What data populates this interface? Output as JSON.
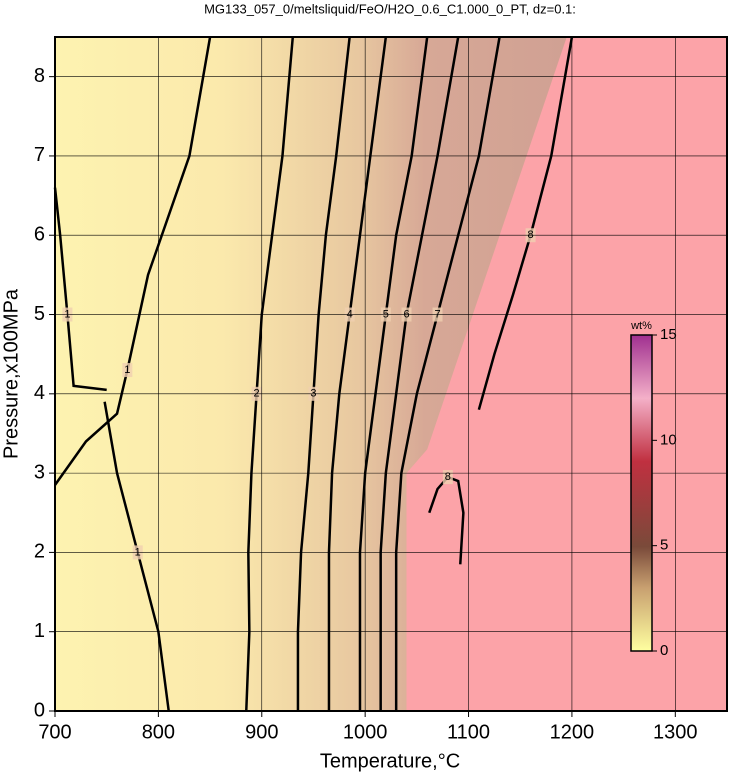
{
  "chart_data": {
    "type": "contour",
    "title": "MG133_057_0/meltsliquid/FeO/H2O_0.6_C1.000_0_PT, dz=0.1:",
    "xlabel": "Temperature,°C",
    "ylabel": "Pressure,x100MPa",
    "xlim": [
      700,
      1350
    ],
    "ylim": [
      0,
      8.5
    ],
    "xticks": [
      700,
      800,
      900,
      1000,
      1100,
      1200,
      1300
    ],
    "yticks": [
      0,
      1,
      2,
      3,
      4,
      5,
      6,
      7,
      8
    ],
    "grid": true,
    "contours": [
      {
        "level": 1,
        "x": [
          700,
          730,
          760,
          770,
          790,
          830,
          850
        ],
        "y": [
          2.85,
          3.4,
          3.75,
          4.3,
          5.5,
          7,
          8.5
        ]
      },
      {
        "level": 1,
        "x": [
          810,
          800,
          780,
          760,
          748
        ],
        "y": [
          0,
          1,
          2,
          3,
          3.9
        ]
      },
      {
        "level": 1,
        "x": [
          700,
          705,
          712,
          718,
          750
        ],
        "y": [
          6.6,
          6,
          5,
          4.1,
          4.05
        ]
      },
      {
        "level": 2,
        "x": [
          885,
          888,
          887,
          890,
          895,
          900,
          910,
          920,
          930
        ],
        "y": [
          0,
          1,
          2,
          3,
          4,
          5,
          6,
          7,
          8.5
        ]
      },
      {
        "level": 3,
        "x": [
          935,
          935,
          938,
          945,
          950,
          955,
          962,
          972,
          985
        ],
        "y": [
          0,
          1,
          2,
          3,
          4,
          5,
          6,
          7,
          8.5
        ]
      },
      {
        "level": 4,
        "x": [
          965,
          965,
          968,
          975,
          985,
          995,
          1005,
          1020
        ],
        "y": [
          0,
          2,
          3,
          4,
          5,
          6,
          7,
          8.5
        ]
      },
      {
        "level": 5,
        "x": [
          995,
          995,
          1000,
          1010,
          1020,
          1030,
          1045,
          1060
        ],
        "y": [
          0,
          2,
          3,
          4,
          5,
          6,
          7,
          8.5
        ]
      },
      {
        "level": 6,
        "x": [
          1015,
          1015,
          1020,
          1030,
          1040,
          1055,
          1070,
          1090
        ],
        "y": [
          0,
          2,
          3,
          4,
          5,
          6,
          7,
          8.5
        ]
      },
      {
        "level": 7,
        "x": [
          1030,
          1030,
          1035,
          1050,
          1070,
          1090,
          1110,
          1130
        ],
        "y": [
          0,
          2,
          3,
          4,
          5,
          6,
          7,
          8.5
        ]
      },
      {
        "level": 8,
        "x": [
          1092,
          1095,
          1090,
          1080,
          1070,
          1062
        ],
        "y": [
          1.85,
          2.5,
          2.9,
          2.95,
          2.8,
          2.5
        ]
      },
      {
        "level": 8,
        "x": [
          1110,
          1125,
          1143,
          1160,
          1180,
          1200
        ],
        "y": [
          3.8,
          4.5,
          5.25,
          6,
          7,
          8.5
        ]
      }
    ],
    "boundary": {
      "x": [
        1040,
        1040,
        1060,
        1195
      ],
      "y": [
        0,
        3,
        3.3,
        8.5
      ]
    },
    "colorbar": {
      "label": "wt%",
      "lim": [
        0,
        15
      ],
      "ticks": [
        0,
        5,
        10,
        15
      ]
    }
  }
}
